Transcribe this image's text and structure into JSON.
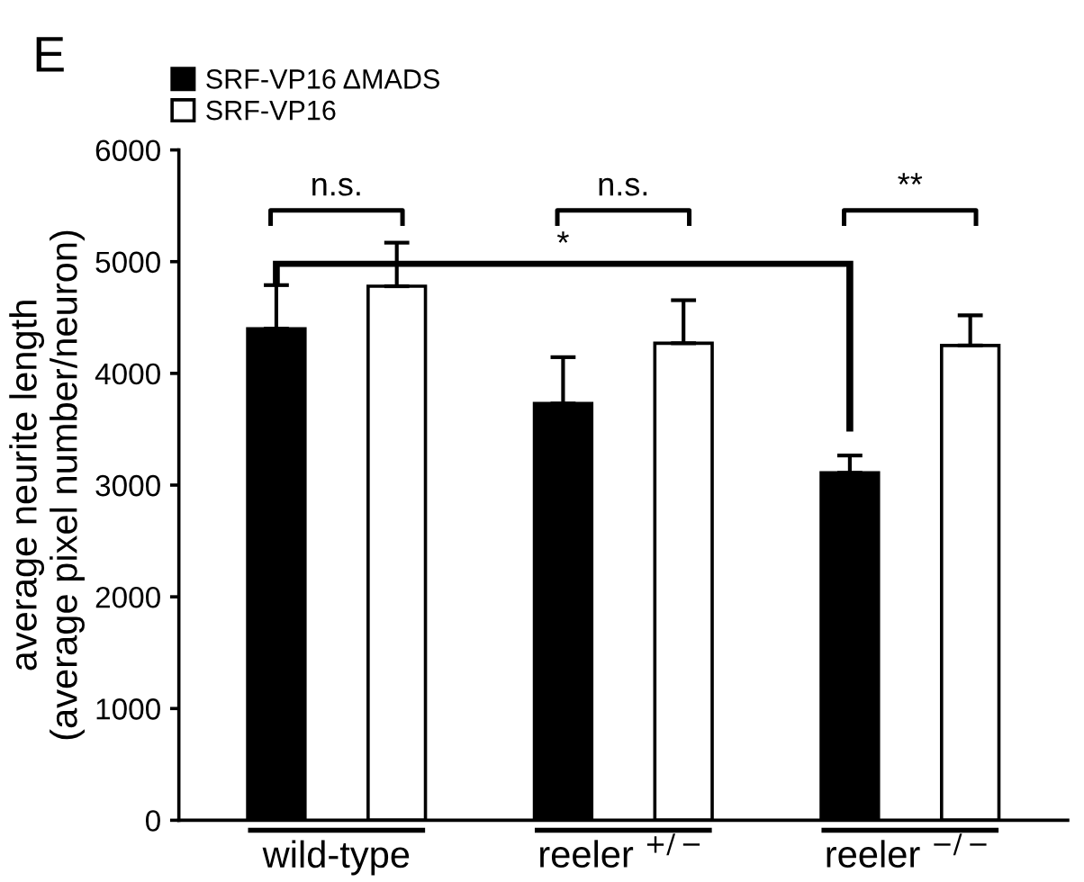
{
  "chart_data": {
    "type": "bar",
    "ylabel": "average neurite length\n(average pixel number/neuron)",
    "categories": [
      "wild-type",
      "reeler $^{+/−}$",
      "reeler $^{−/−}$"
    ],
    "series": [
      {
        "name": "SRF-VP16 ΔMADS",
        "color": "#000000",
        "values": [
          4400,
          3730,
          3110
        ],
        "errors": [
          [
            4400,
            4790
          ],
          [
            3730,
            4145
          ],
          [
            3110,
            3265
          ]
        ]
      },
      {
        "name": "SRF-VP16",
        "color": "#ffffff",
        "values": [
          4780,
          4270,
          4250
        ],
        "errors": [
          [
            4780,
            5170
          ],
          [
            4270,
            4655
          ],
          [
            4250,
            4520
          ]
        ]
      }
    ],
    "ylim": [
      0,
      6000
    ],
    "yticks": [
      0,
      1000,
      2000,
      3000,
      4000,
      5000,
      6000
    ],
    "grid": false,
    "legend": "top left",
    "annotations": [
      "E",
      "n.s.",
      "n.s.",
      "*",
      "**"
    ]
  }
}
